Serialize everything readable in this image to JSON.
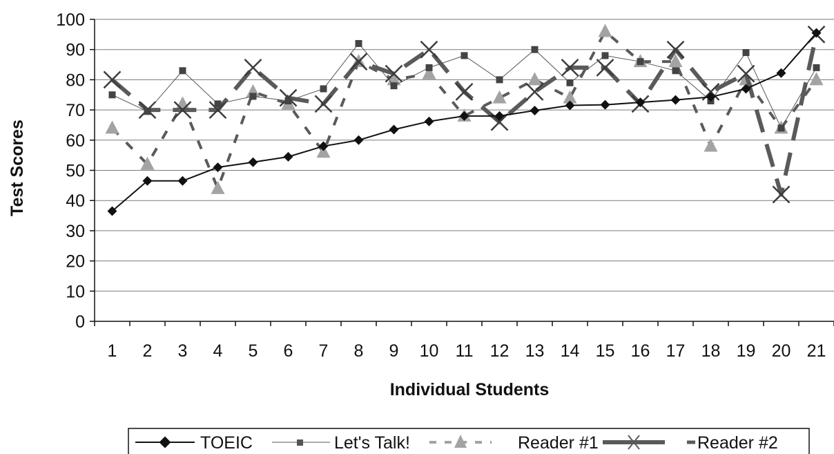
{
  "chart_data": {
    "type": "line",
    "title": "",
    "xlabel": "Individual Students",
    "ylabel": "Test Scores",
    "ylim": [
      0,
      100
    ],
    "yticks": [
      0,
      10,
      20,
      30,
      40,
      50,
      60,
      70,
      80,
      90,
      100
    ],
    "grid": "horizontal",
    "legend_position": "bottom",
    "categories": [
      "1",
      "2",
      "3",
      "4",
      "5",
      "6",
      "7",
      "8",
      "9",
      "10",
      "11",
      "12",
      "13",
      "14",
      "15",
      "16",
      "17",
      "18",
      "19",
      "20",
      "21"
    ],
    "series": [
      {
        "name": "TOEIC",
        "style": "solid-diamond",
        "color": "#111111",
        "values": [
          36.5,
          46.5,
          46.5,
          51,
          52.7,
          54.5,
          58,
          60,
          63.5,
          66.2,
          68,
          68,
          69.8,
          71.5,
          71.7,
          72.5,
          73.3,
          74.3,
          77,
          82.2,
          95.5
        ]
      },
      {
        "name": "Let's Talk!",
        "style": "thin-square",
        "color": "#555555",
        "values": [
          75,
          69.5,
          83,
          72,
          74.5,
          73,
          77,
          92,
          78,
          84,
          88,
          80,
          90,
          79,
          88,
          86,
          83,
          73,
          89,
          64,
          84
        ]
      },
      {
        "name": "Reader #1",
        "style": "dashed-triangle",
        "color": "#a3a3a3",
        "values": [
          64,
          52,
          72,
          44,
          76,
          72,
          56,
          86,
          80,
          82,
          68,
          74,
          80,
          74,
          96,
          86,
          86,
          58,
          80,
          64,
          80
        ]
      },
      {
        "name": "Reader #2",
        "style": "thick-x",
        "color": "#5a5a5a",
        "values": [
          80,
          70,
          70,
          70,
          84,
          74,
          72,
          86,
          82,
          90,
          76,
          66,
          76,
          84,
          84,
          72,
          90,
          76,
          82,
          42,
          95
        ]
      }
    ]
  },
  "legend": {
    "items": [
      "TOEIC",
      "Let's Talk!",
      "Reader #1",
      "Reader #2"
    ]
  }
}
